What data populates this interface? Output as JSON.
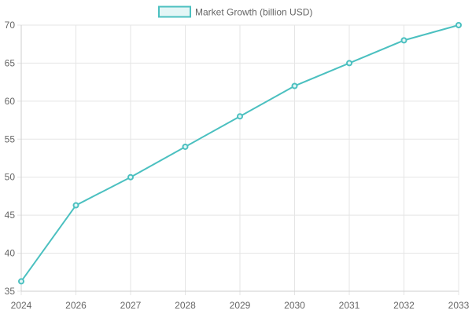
{
  "chart_data": {
    "type": "line",
    "title": "",
    "xlabel": "",
    "ylabel": "",
    "categories": [
      "2024",
      "2026",
      "2027",
      "2028",
      "2029",
      "2030",
      "2031",
      "2032",
      "2033"
    ],
    "y_ticks": [
      "35",
      "40",
      "45",
      "50",
      "55",
      "60",
      "65",
      "70"
    ],
    "ylim": [
      35,
      70
    ],
    "grid": true,
    "legend_position": "top",
    "series": [
      {
        "name": "Market Growth (billion USD)",
        "values": [
          36.3,
          46.3,
          50,
          54,
          58,
          62,
          65,
          68,
          70
        ],
        "color": "#4bc0c0",
        "fill": "#e4f6f6"
      }
    ]
  }
}
